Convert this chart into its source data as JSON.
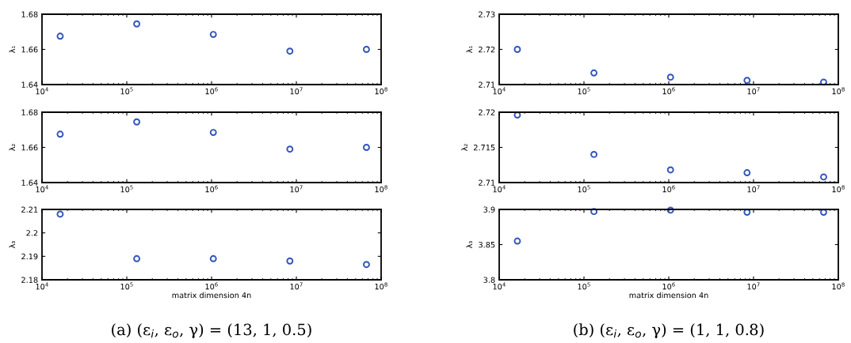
{
  "chart_data": [
    {
      "type": "scatter",
      "ylabel": "λ₁",
      "x": [
        16384,
        131072,
        1048576,
        8388608,
        67108864
      ],
      "values": [
        1.6675,
        1.6745,
        1.6685,
        1.659,
        1.66
      ],
      "color": "#3355bb",
      "marker": "circle",
      "log": "x",
      "xlim": [
        10000,
        100000000
      ],
      "xticks": [
        {
          "value": 10000,
          "label": "10$^{4}$"
        },
        {
          "value": 100000,
          "label": "10$^{5}$"
        },
        {
          "value": 1000000,
          "label": "10$^{6}$"
        },
        {
          "value": 10000000,
          "label": "10$^{7}$"
        },
        {
          "value": 100000000,
          "label": "10$^{8}$"
        }
      ],
      "ylim": [
        1.64,
        1.68
      ],
      "yticks": [
        1.64,
        1.66,
        1.68
      ],
      "grid": false
    },
    {
      "type": "scatter",
      "ylabel": "λ₂",
      "x": [
        16384,
        131072,
        1048576,
        8388608,
        67108864
      ],
      "values": [
        1.6675,
        1.6745,
        1.6685,
        1.659,
        1.66
      ],
      "color": "#3355bb",
      "marker": "circle",
      "log": "x",
      "xlim": [
        10000,
        100000000
      ],
      "xticks": [
        {
          "value": 10000,
          "label": "10$^{4}$"
        },
        {
          "value": 100000,
          "label": "10$^{5}$"
        },
        {
          "value": 1000000,
          "label": "10$^{6}$"
        },
        {
          "value": 10000000,
          "label": "10$^{7}$"
        },
        {
          "value": 100000000,
          "label": "10$^{8}$"
        }
      ],
      "ylim": [
        1.64,
        1.68
      ],
      "yticks": [
        1.64,
        1.66,
        1.68
      ],
      "grid": false
    },
    {
      "type": "scatter",
      "ylabel": "λ₃",
      "xlabel": "matrix dimension 4n",
      "annotations": [
        "(a) (ε$_{i}$, ε$_{o}$, γ) = (13, 1, 0.5)"
      ],
      "x": [
        16384,
        131072,
        1048576,
        8388608,
        67108864
      ],
      "values": [
        2.208,
        2.189,
        2.189,
        2.188,
        2.1865
      ],
      "color": "#3355bb",
      "marker": "circle",
      "log": "x",
      "xlim": [
        10000,
        100000000
      ],
      "xticks": [
        {
          "value": 10000,
          "label": "10$^{4}$"
        },
        {
          "value": 100000,
          "label": "10$^{5}$"
        },
        {
          "value": 1000000,
          "label": "10$^{6}$"
        },
        {
          "value": 10000000,
          "label": "10$^{7}$"
        },
        {
          "value": 100000000,
          "label": "10$^{8}$"
        }
      ],
      "ylim": [
        2.18,
        2.21
      ],
      "yticks": [
        2.18,
        2.19,
        2.2,
        2.21
      ],
      "grid": false
    },
    {
      "type": "scatter",
      "ylabel": "λ₁",
      "x": [
        16384,
        131072,
        1048576,
        8388608,
        67108864
      ],
      "values": [
        2.72,
        2.7133,
        2.7121,
        2.7112,
        2.7107
      ],
      "color": "#3355bb",
      "marker": "circle",
      "log": "x",
      "xlim": [
        10000,
        100000000
      ],
      "xticks": [
        {
          "value": 10000,
          "label": "10$^{4}$"
        },
        {
          "value": 100000,
          "label": "10$^{5}$"
        },
        {
          "value": 1000000,
          "label": "10$^{6}$"
        },
        {
          "value": 10000000,
          "label": "10$^{7}$"
        },
        {
          "value": 100000000,
          "label": "10$^{8}$"
        }
      ],
      "ylim": [
        2.71,
        2.73
      ],
      "yticks": [
        2.71,
        2.72,
        2.73
      ],
      "grid": false
    },
    {
      "type": "scatter",
      "ylabel": "λ₂",
      "x": [
        16384,
        131072,
        1048576,
        8388608,
        67108864
      ],
      "values": [
        2.7196,
        2.714,
        2.7118,
        2.7114,
        2.7108
      ],
      "color": "#3355bb",
      "marker": "circle",
      "log": "x",
      "xlim": [
        10000,
        100000000
      ],
      "xticks": [
        {
          "value": 10000,
          "label": "10$^{4}$"
        },
        {
          "value": 100000,
          "label": "10$^{5}$"
        },
        {
          "value": 1000000,
          "label": "10$^{6}$"
        },
        {
          "value": 10000000,
          "label": "10$^{7}$"
        },
        {
          "value": 100000000,
          "label": "10$^{8}$"
        }
      ],
      "ylim": [
        2.71,
        2.72
      ],
      "yticks": [
        2.71,
        2.715,
        2.72
      ],
      "grid": false
    },
    {
      "type": "scatter",
      "ylabel": "λ₃",
      "xlabel": "matrix dimension 4n",
      "annotations": [
        "(b) (ε$_{i}$, ε$_{o}$, γ) = (1, 1, 0.8)"
      ],
      "x": [
        16384,
        131072,
        1048576,
        8388608,
        67108864
      ],
      "values": [
        3.855,
        3.897,
        3.899,
        3.896,
        3.896
      ],
      "color": "#3355bb",
      "marker": "circle",
      "log": "x",
      "xlim": [
        10000,
        100000000
      ],
      "xticks": [
        {
          "value": 10000,
          "label": "10$^{4}$"
        },
        {
          "value": 100000,
          "label": "10$^{5}$"
        },
        {
          "value": 1000000,
          "label": "10$^{6}$"
        },
        {
          "value": 10000000,
          "label": "10$^{7}$"
        },
        {
          "value": 100000000,
          "label": "10$^{8}$"
        }
      ],
      "ylim": [
        3.8,
        3.9
      ],
      "yticks": [
        3.8,
        3.85,
        3.9
      ],
      "grid": false
    }
  ]
}
